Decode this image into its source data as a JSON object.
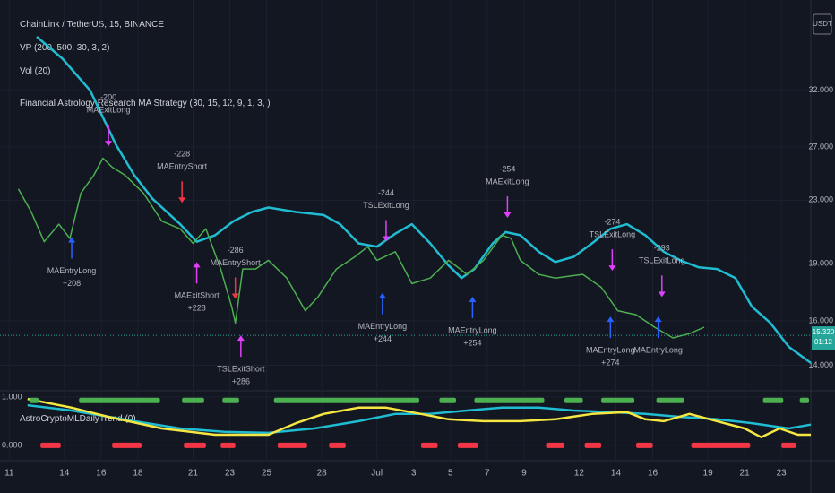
{
  "header": {
    "symbol": "ChainLink / TetherUS, 15, BINANCE",
    "indicators": [
      "VP (200, 500, 30, 3, 2)",
      "Vol (20)",
      "Financial Astrology Research MA Strategy (30, 15, 12, 9, 1, 3, )"
    ],
    "currency": "USDT"
  },
  "chart_data": [
    {
      "type": "line",
      "log": true,
      "grid": true,
      "xlim": [
        10.5,
        54.6
      ],
      "xticks": [
        11,
        14,
        16,
        18,
        21,
        23,
        25,
        28,
        {
          "value": 31,
          "label": "Jul"
        },
        {
          "value": 33,
          "label": "3"
        },
        {
          "value": 35,
          "label": "5"
        },
        {
          "value": 37,
          "label": "7"
        },
        {
          "value": 39,
          "label": "9"
        },
        {
          "value": 42,
          "label": "12"
        },
        {
          "value": 44,
          "label": "14"
        },
        {
          "value": 46,
          "label": "16"
        },
        {
          "value": 49,
          "label": "19"
        },
        {
          "value": 51,
          "label": "21"
        },
        {
          "value": 53,
          "label": "23"
        }
      ],
      "ylim": [
        13,
        42
      ],
      "yticks": [
        {
          "value": 14,
          "label": "14.000"
        },
        {
          "value": 16,
          "label": "16.000"
        },
        {
          "value": 19,
          "label": "19.000"
        },
        {
          "value": 23,
          "label": "23.000"
        },
        {
          "value": 27,
          "label": "27.000"
        },
        {
          "value": 32,
          "label": "32.000"
        }
      ],
      "price": {
        "color": "#4caf50",
        "x": [
          11.5,
          12.2,
          12.9,
          13.7,
          14.3,
          14.9,
          15.6,
          16.1,
          16.6,
          17.3,
          18.3,
          19.3,
          20.3,
          21.0,
          21.7,
          22.5,
          23.1,
          23.3,
          23.7,
          24.4,
          25.1,
          26.1,
          27.1,
          27.8,
          28.8,
          29.8,
          30.5,
          31.0,
          32.0,
          32.9,
          33.9,
          34.9,
          35.9,
          36.8,
          37.8,
          38.3,
          38.8,
          39.8,
          40.7,
          42.2,
          43.2,
          44.1,
          45.1,
          46.1,
          47.1,
          48.0,
          48.8
        ],
        "values": [
          23.8,
          22.2,
          20.3,
          21.4,
          20.5,
          23.5,
          24.8,
          26.1,
          25.4,
          24.8,
          23.5,
          21.6,
          21.1,
          20.2,
          21.1,
          18.7,
          16.7,
          15.9,
          18.7,
          18.7,
          19.2,
          18.2,
          16.5,
          17.2,
          18.7,
          19.4,
          20.0,
          19.2,
          19.7,
          17.9,
          18.2,
          19.2,
          18.4,
          19.2,
          20.7,
          20.5,
          19.2,
          18.4,
          18.2,
          18.4,
          17.7,
          16.5,
          16.3,
          15.7,
          15.2,
          15.4,
          15.7
        ]
      },
      "ma": {
        "color": "#1fbcd2",
        "x": [
          12.5,
          13.9,
          15.4,
          16.8,
          17.8,
          18.8,
          20.3,
          21.2,
          22.2,
          23.2,
          24.2,
          25.1,
          26.6,
          28.1,
          29.0,
          30.0,
          31.0,
          32.0,
          32.9,
          33.9,
          34.9,
          35.6,
          36.3,
          37.3,
          38.0,
          38.8,
          39.8,
          40.7,
          41.7,
          42.7,
          43.7,
          44.6,
          45.6,
          46.6,
          47.5,
          48.5,
          49.5,
          50.5,
          51.4,
          52.4,
          53.4,
          54.6
        ],
        "values": [
          37.6,
          35.2,
          32.0,
          27.2,
          24.8,
          23.1,
          21.4,
          20.3,
          20.7,
          21.6,
          22.2,
          22.5,
          22.2,
          22.0,
          21.4,
          20.2,
          20.0,
          20.8,
          21.4,
          20.2,
          18.9,
          18.2,
          18.7,
          20.2,
          20.9,
          20.7,
          19.7,
          19.1,
          19.4,
          20.2,
          21.1,
          21.4,
          20.7,
          19.7,
          19.2,
          18.8,
          18.7,
          18.2,
          16.7,
          15.9,
          14.8,
          14.1
        ]
      },
      "last_price": {
        "value": 15.32,
        "label": "15.320",
        "countdown": "01:12"
      },
      "annotations": [
        {
          "x": 16.4,
          "y": 26.9,
          "dir": "down",
          "color": "#e040fb",
          "label": "MAExitLong",
          "qty": "-200"
        },
        {
          "x": 20.4,
          "y": 22.7,
          "dir": "down",
          "color": "#f23645",
          "label": "MAEntryShort",
          "qty": "-228"
        },
        {
          "x": 14.4,
          "y": 20.7,
          "dir": "up",
          "color": "#2962ff",
          "label": "MAEntryLong",
          "qty": "+208"
        },
        {
          "x": 21.2,
          "y": 19.2,
          "dir": "up",
          "color": "#e040fb",
          "label": "MAExitShort",
          "qty": "+228"
        },
        {
          "x": 23.3,
          "y": 17.0,
          "dir": "down",
          "color": "#f23645",
          "label": "MAEntryShort",
          "qty": "-286"
        },
        {
          "x": 23.6,
          "y": 15.4,
          "dir": "up",
          "color": "#e040fb",
          "label": "TSLExitShort",
          "qty": "+286"
        },
        {
          "x": 31.5,
          "y": 20.2,
          "dir": "down",
          "color": "#e040fb",
          "label": "TSLExitLong",
          "qty": "-244"
        },
        {
          "x": 31.3,
          "y": 17.5,
          "dir": "up",
          "color": "#2962ff",
          "label": "MAEntryLong",
          "qty": "+244"
        },
        {
          "x": 36.2,
          "y": 17.3,
          "dir": "up",
          "color": "#2962ff",
          "label": "MAEntryLong",
          "qty": "+254"
        },
        {
          "x": 38.1,
          "y": 21.7,
          "dir": "down",
          "color": "#e040fb",
          "label": "MAExitLong",
          "qty": "-254"
        },
        {
          "x": 43.8,
          "y": 18.5,
          "dir": "down",
          "color": "#e040fb",
          "label": "TSLExitLong",
          "qty": "-274"
        },
        {
          "x": 43.7,
          "y": 16.3,
          "dir": "up",
          "color": "#2962ff",
          "label": "MAEntryLong",
          "qty": "+274"
        },
        {
          "x": 46.5,
          "y": 17.1,
          "dir": "down",
          "color": "#e040fb",
          "label": "TSLExitLong",
          "qty": "-293"
        },
        {
          "x": 46.3,
          "y": 16.3,
          "dir": "up",
          "color": "#2962ff",
          "label": "MAEntryLong"
        }
      ]
    },
    {
      "type": "line",
      "title": "AstroCryptoMLDailyTrend (0)",
      "ylim": [
        -0.28,
        1.11
      ],
      "yticks": [
        {
          "value": 0,
          "label": "0.000"
        },
        {
          "value": 1,
          "label": "1.000"
        }
      ],
      "series": [
        {
          "color": "#1fbcd2",
          "x": [
            12.0,
            14.4,
            17.8,
            20.3,
            22.7,
            25.1,
            27.6,
            30.0,
            32.0,
            33.9,
            35.9,
            37.8,
            39.8,
            41.7,
            43.7,
            45.6,
            47.5,
            49.5,
            51.4,
            53.4,
            54.6
          ],
          "values": [
            0.83,
            0.72,
            0.5,
            0.35,
            0.28,
            0.26,
            0.35,
            0.5,
            0.65,
            0.65,
            0.72,
            0.78,
            0.78,
            0.72,
            0.69,
            0.65,
            0.59,
            0.54,
            0.46,
            0.35,
            0.43
          ]
        },
        {
          "color": "#f5e642",
          "x": [
            12.0,
            14.4,
            16.4,
            19.3,
            22.2,
            25.1,
            26.6,
            28.1,
            30.0,
            31.5,
            33.4,
            34.9,
            36.8,
            38.8,
            40.7,
            42.7,
            44.6,
            45.6,
            46.6,
            48.0,
            49.5,
            51.0,
            51.9,
            52.9,
            53.9,
            54.6
          ],
          "values": [
            0.96,
            0.78,
            0.59,
            0.35,
            0.22,
            0.22,
            0.46,
            0.65,
            0.78,
            0.78,
            0.65,
            0.54,
            0.5,
            0.5,
            0.54,
            0.65,
            0.69,
            0.54,
            0.5,
            0.65,
            0.5,
            0.35,
            0.17,
            0.35,
            0.22,
            0.22
          ]
        }
      ],
      "segments": [
        {
          "color": "#4caf50",
          "value": 0.93,
          "ranges": [
            [
              12.1,
              12.7
            ],
            [
              14.8,
              19.3
            ],
            [
              20.4,
              21.7
            ],
            [
              22.6,
              23.6
            ],
            [
              25.4,
              33.4
            ],
            [
              34.4,
              35.4
            ],
            [
              36.3,
              40.2
            ],
            [
              41.2,
              42.3
            ],
            [
              43.2,
              45.1
            ],
            [
              46.2,
              47.8
            ],
            [
              52.0,
              53.2
            ],
            [
              54.0,
              54.6
            ]
          ]
        },
        {
          "color": "#f23645",
          "value": 0,
          "ranges": [
            [
              12.7,
              13.9
            ],
            [
              16.6,
              18.3
            ],
            [
              20.5,
              21.8
            ],
            [
              22.5,
              23.4
            ],
            [
              25.6,
              27.3
            ],
            [
              28.4,
              29.4
            ],
            [
              33.4,
              34.4
            ],
            [
              35.4,
              36.6
            ],
            [
              40.2,
              41.3
            ],
            [
              42.3,
              43.3
            ],
            [
              45.1,
              46.1
            ],
            [
              48.1,
              51.4
            ],
            [
              53.0,
              53.9
            ]
          ]
        }
      ]
    }
  ]
}
